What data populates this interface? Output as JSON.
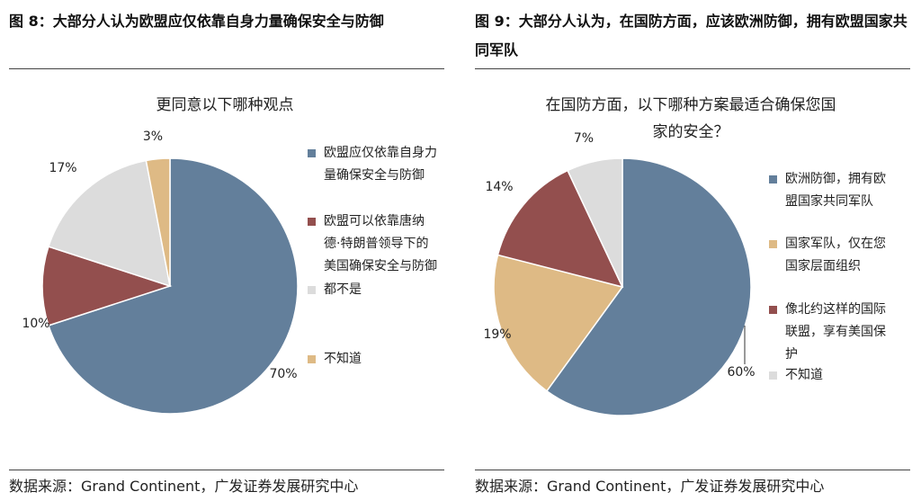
{
  "figures": [
    {
      "id": "left",
      "fig_title": "图 8：大部分人认为欧盟应仅依靠自身力量确保安全与防御",
      "source": "数据来源：Grand Continent，广发证券发展研究中心",
      "chart_title_lines": [
        "更同意以下哪种观点"
      ],
      "legend": [
        {
          "lines": [
            "欧盟应仅依靠自身力",
            "量确保安全与防御"
          ],
          "color": "#637f9b"
        },
        {
          "lines": [
            "欧盟可以依靠唐纳",
            "德·特朗普领导下的",
            "美国确保安全与防御"
          ],
          "color": "#934f4e"
        },
        {
          "lines": [
            "都不是"
          ],
          "color": "#dcdcdc"
        },
        {
          "lines": [
            "不知道"
          ],
          "color": "#deba85"
        }
      ],
      "slice_labels": [
        "70%",
        "10%",
        "17%",
        "3%"
      ]
    },
    {
      "id": "right",
      "fig_title": "图 9：大部分人认为，在国防方面，应该欧洲防御，拥有欧盟国家共同军队",
      "source": "数据来源：Grand Continent，广发证券发展研究中心",
      "chart_title_lines": [
        "在国防方面，以下哪种方案最适合确保您国",
        "家的安全？"
      ],
      "legend": [
        {
          "lines": [
            "欧洲防御，拥有欧",
            "盟国家共同军队"
          ],
          "color": "#637f9b"
        },
        {
          "lines": [
            "国家军队，仅在您",
            "国家层面组织"
          ],
          "color": "#deba85"
        },
        {
          "lines": [
            "像北约这样的国际",
            "联盟，享有美国保",
            "护"
          ],
          "color": "#934f4e"
        },
        {
          "lines": [
            "不知道"
          ],
          "color": "#dcdcdc"
        }
      ],
      "slice_labels": [
        "60%",
        "19%",
        "14%",
        "7%"
      ]
    }
  ],
  "chart_data": [
    {
      "type": "pie",
      "title": "更同意以下哪种观点",
      "categories": [
        "欧盟应仅依靠自身力量确保安全与防御",
        "欧盟可以依靠唐纳德·特朗普领导下的美国确保安全与防御",
        "都不是",
        "不知道"
      ],
      "values": [
        70,
        10,
        17,
        3
      ],
      "colors": [
        "#637f9b",
        "#934f4e",
        "#dcdcdc",
        "#deba85"
      ],
      "legend_position": "right"
    },
    {
      "type": "pie",
      "title": "在国防方面，以下哪种方案最适合确保您国家的安全？",
      "categories": [
        "欧洲防御，拥有欧盟国家共同军队",
        "国家军队，仅在您国家层面组织",
        "像北约这样的国际联盟，享有美国保护",
        "不知道"
      ],
      "values": [
        60,
        19,
        14,
        7
      ],
      "colors": [
        "#637f9b",
        "#deba85",
        "#934f4e",
        "#dcdcdc"
      ],
      "legend_position": "right"
    }
  ]
}
